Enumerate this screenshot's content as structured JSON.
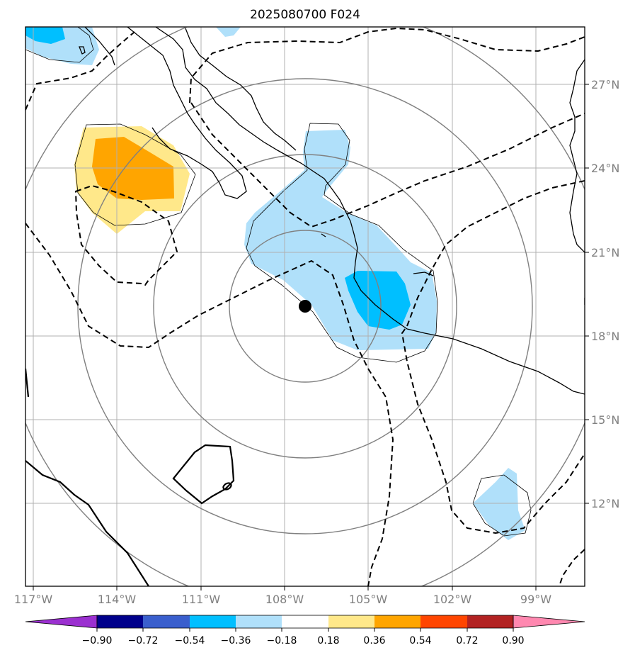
{
  "title": "2025080700 F024",
  "map": {
    "lon_range": [
      -117.2,
      -97.2
    ],
    "lat_range": [
      9.2,
      29.2
    ],
    "lon_ticks": [
      "117°W",
      "114°W",
      "111°W",
      "108°W",
      "105°W",
      "102°W",
      "99°W"
    ],
    "lat_ticks": [
      "12°N",
      "15°N",
      "18°N",
      "21°N",
      "24°N",
      "27°N"
    ],
    "center_marker": {
      "lon": -107.2,
      "lat": 19.0
    }
  },
  "colorbar": {
    "labels": [
      "−0.90",
      "−0.72",
      "−0.54",
      "−0.36",
      "−0.18",
      "0.18",
      "0.36",
      "0.54",
      "0.72",
      "0.90"
    ],
    "colors": [
      "#9b30d0",
      "#00008b",
      "#3a5fcd",
      "#00bfff",
      "#b0e0fa",
      "#ffffff",
      "#ffe88a",
      "#ffa500",
      "#ff4500",
      "#b22222",
      "#ff88b0"
    ]
  }
}
